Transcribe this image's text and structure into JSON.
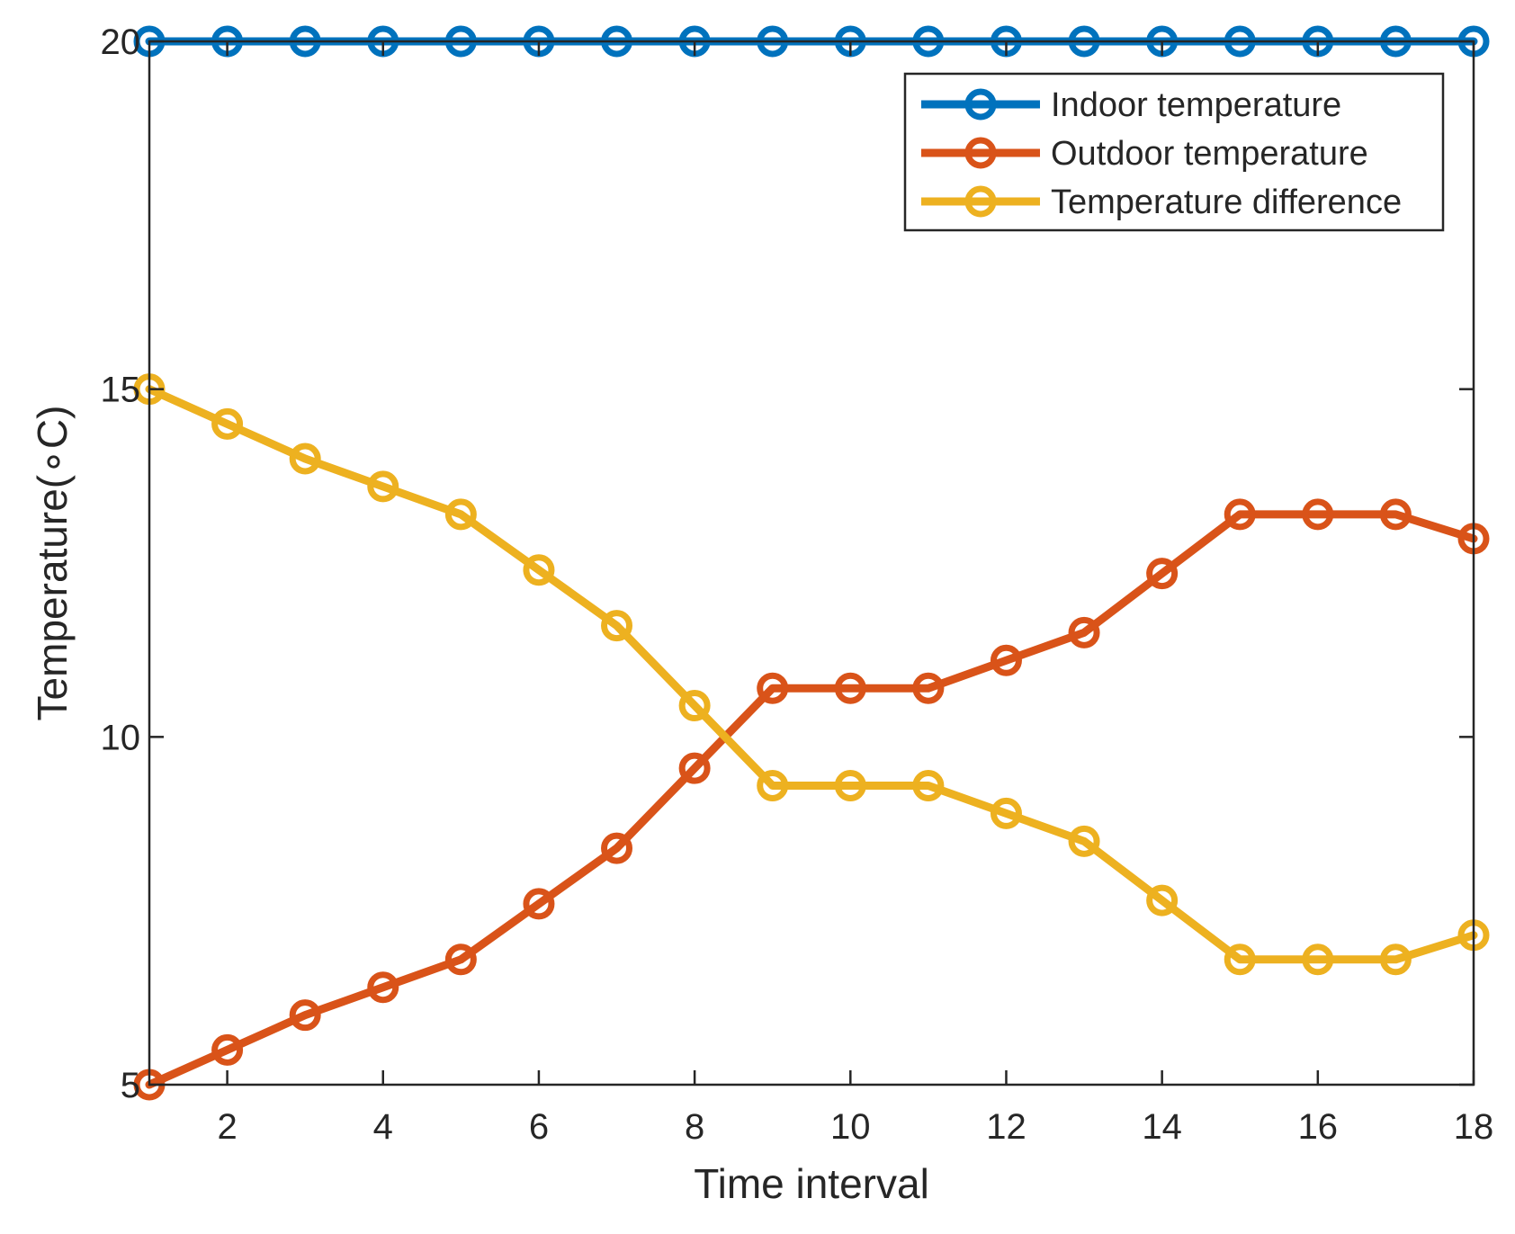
{
  "chart_data": {
    "type": "line",
    "xlabel": "Time interval",
    "ylabel": "Temperature(∘C)",
    "xlim": [
      1,
      18
    ],
    "ylim": [
      5,
      20
    ],
    "xticks": [
      "2",
      "4",
      "6",
      "8",
      "10",
      "12",
      "14",
      "16",
      "18"
    ],
    "yticks": [
      "5",
      "10",
      "15",
      "20"
    ],
    "grid": false,
    "legend_position": "top-right",
    "x": [
      1,
      2,
      3,
      4,
      5,
      6,
      7,
      8,
      9,
      10,
      11,
      12,
      13,
      14,
      15,
      16,
      17,
      18
    ],
    "series": [
      {
        "name": "Indoor temperature",
        "color": "#0072BD",
        "values": [
          20,
          20,
          20,
          20,
          20,
          20,
          20,
          20,
          20,
          20,
          20,
          20,
          20,
          20,
          20,
          20,
          20,
          20
        ]
      },
      {
        "name": "Outdoor temperature",
        "color": "#D95319",
        "values": [
          5.0,
          5.5,
          6.0,
          6.4,
          6.8,
          7.6,
          8.4,
          9.55,
          10.7,
          10.7,
          10.7,
          11.1,
          11.5,
          12.35,
          13.2,
          13.2,
          13.2,
          12.85
        ]
      },
      {
        "name": "Temperature difference",
        "color": "#EDB120",
        "values": [
          15.0,
          14.5,
          14.0,
          13.6,
          13.2,
          12.4,
          11.6,
          10.45,
          9.3,
          9.3,
          9.3,
          8.9,
          8.5,
          7.65,
          6.8,
          6.8,
          6.8,
          7.15
        ]
      }
    ]
  }
}
